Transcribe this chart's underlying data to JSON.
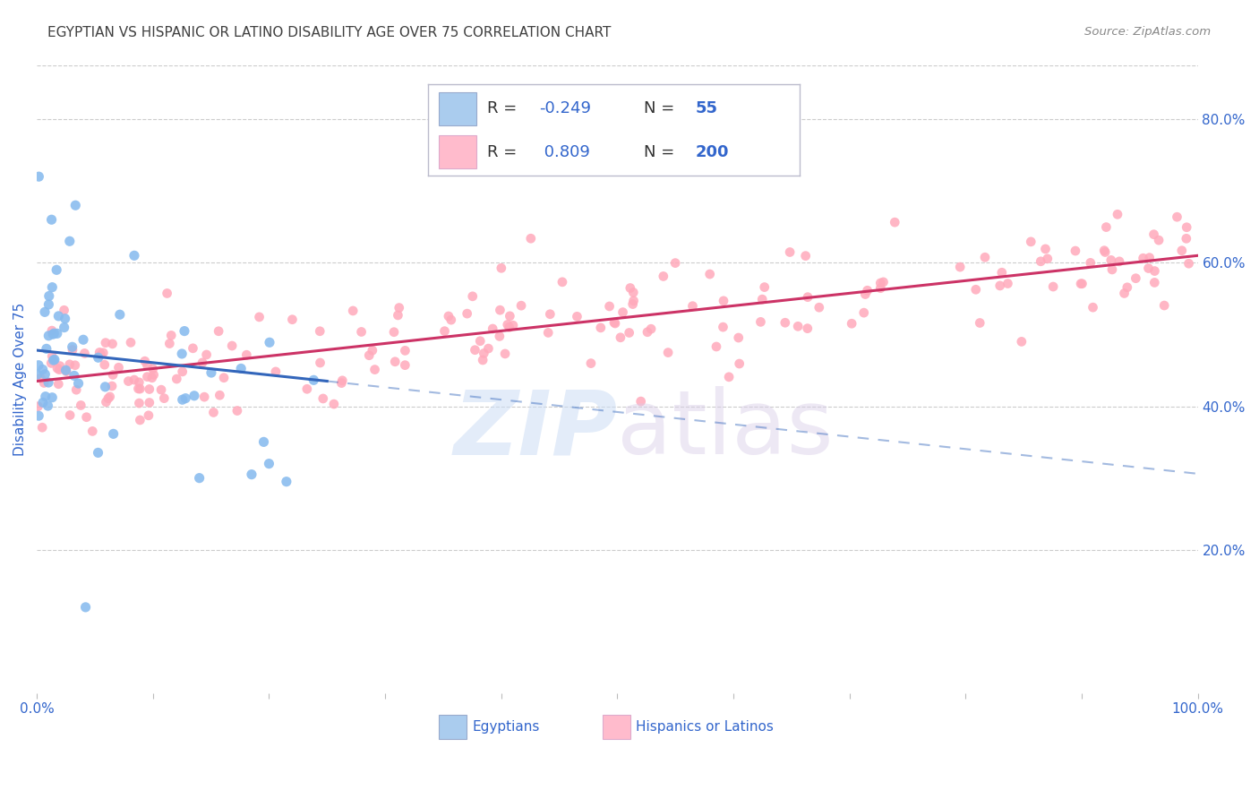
{
  "title": "EGYPTIAN VS HISPANIC OR LATINO DISABILITY AGE OVER 75 CORRELATION CHART",
  "source": "Source: ZipAtlas.com",
  "ylabel": "Disability Age Over 75",
  "title_color": "#404040",
  "source_color": "#888888",
  "tick_label_color": "#3366cc",
  "right_yticks": [
    "80.0%",
    "60.0%",
    "40.0%",
    "20.0%"
  ],
  "right_ytick_vals": [
    0.8,
    0.6,
    0.4,
    0.2
  ],
  "blue_fill": "#aaccee",
  "pink_fill": "#ffbbcc",
  "blue_dot_color": "#88bbee",
  "pink_dot_color": "#ffaabb",
  "trend_blue": "#3366bb",
  "trend_pink": "#cc3366",
  "legend_label1": "Egyptians",
  "legend_label2": "Hispanics or Latinos",
  "xmin": 0.0,
  "xmax": 1.0,
  "ymin": 0.0,
  "ymax": 0.875,
  "blue_r": -0.249,
  "blue_n": 55,
  "pink_r": 0.809,
  "pink_n": 200,
  "legend_r1_text": "R = -0.249",
  "legend_r2_text": "R =  0.809",
  "legend_n1_text": "N =  55",
  "legend_n2_text": "N = 200",
  "seed": 7
}
